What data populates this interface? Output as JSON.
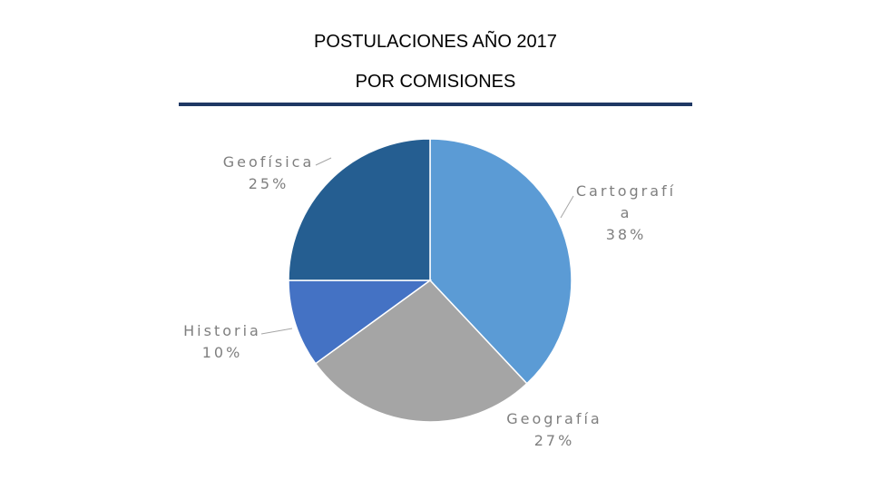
{
  "chart_data": {
    "type": "pie",
    "title": "POSTULACIONES AÑO 2017",
    "subtitle": "POR COMISIONES",
    "slices": [
      {
        "label": "Cartografía",
        "label_lines": [
          "Cartografí",
          "a"
        ],
        "pct_text": "38%",
        "value": 38,
        "color": "#5b9bd5"
      },
      {
        "label": "Geografía",
        "label_lines": [
          "Geografía"
        ],
        "pct_text": "27%",
        "value": 27,
        "color": "#a5a5a5"
      },
      {
        "label": "Historia",
        "label_lines": [
          "Historia"
        ],
        "pct_text": "10%",
        "value": 10,
        "color": "#4472c4"
      },
      {
        "label": "Geofísica",
        "label_lines": [
          "Geofísica"
        ],
        "pct_text": "25%",
        "value": 25,
        "color": "#255e91"
      }
    ]
  }
}
